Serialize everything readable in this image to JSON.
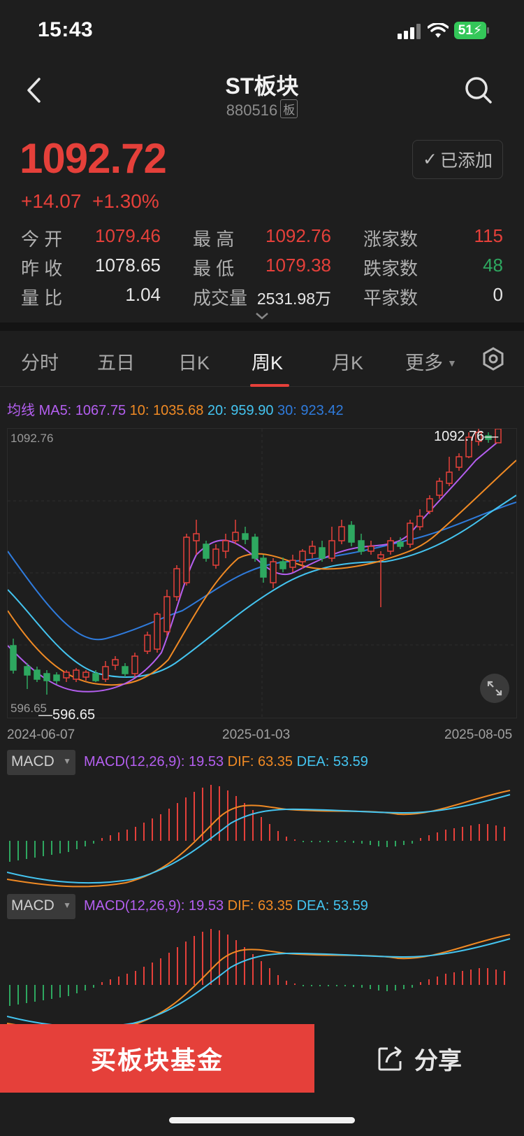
{
  "status": {
    "time": "15:43",
    "battery": "51"
  },
  "header": {
    "title": "ST板块",
    "code": "880516",
    "tag": "板"
  },
  "quote": {
    "price": "1092.72",
    "change": "+14.07",
    "change_pct": "+1.30%",
    "added_label": "已添加"
  },
  "stats": {
    "open_label": "今 开",
    "open": "1079.46",
    "prev_label": "昨 收",
    "prev": "1078.65",
    "ratio_label": "量 比",
    "ratio": "1.04",
    "high_label": "最 高",
    "high": "1092.76",
    "low_label": "最 低",
    "low": "1079.38",
    "vol_label": "成交量",
    "vol": "2531.98万",
    "up_label": "涨家数",
    "up": "115",
    "down_label": "跌家数",
    "down": "48",
    "flat_label": "平家数",
    "flat": "0"
  },
  "tabs": [
    "分时",
    "五日",
    "日K",
    "周K",
    "月K",
    "更多"
  ],
  "ma": {
    "label": "均线",
    "ma5_label": "MA5:",
    "ma5": "1067.75",
    "ma10_label": "10:",
    "ma10": "1035.68",
    "ma20_label": "20:",
    "ma20": "959.90",
    "ma30_label": "30:",
    "ma30": "923.42"
  },
  "kline": {
    "max_label": "1092.76",
    "min_label": "596.65",
    "y_top_label": "1092.76",
    "y_bottom_label": "596.65",
    "x_labels": [
      "2024-06-07",
      "2025-01-03",
      "2025-08-05"
    ]
  },
  "macd": {
    "select": "MACD",
    "params": "MACD(12,26,9): 19.53",
    "dif": "DIF: 63.35",
    "dea": "DEA: 53.59"
  },
  "actions": {
    "buy": "买板块基金",
    "share": "分享"
  },
  "colors": {
    "up": "#e5403a",
    "down": "#2ea860",
    "ma5": "#b45ff0",
    "ma10": "#f08a24",
    "ma20": "#44c4f0",
    "ma30": "#2f7bdc"
  }
}
